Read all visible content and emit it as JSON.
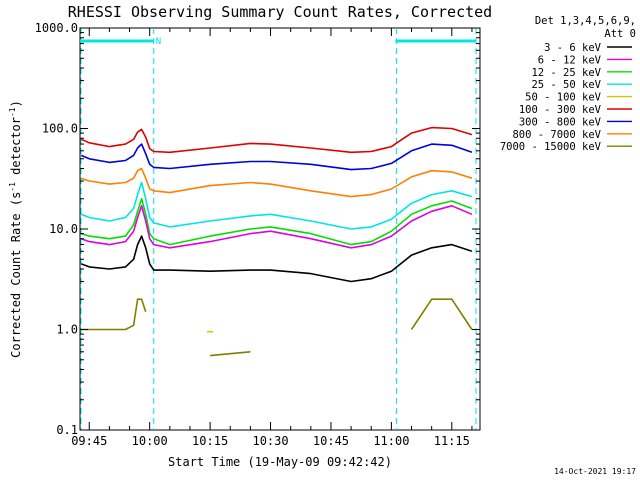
{
  "chart_data": {
    "type": "line",
    "title": "RHESSI Observing Summary Count Rates, Corrected",
    "xlabel": "Start Time (19-May-09 09:42:42)",
    "ylabel": "Corrected Count Rate (s⁻¹ detector⁻¹)",
    "ylabel_parts": {
      "pre": "Corrected Count Rate (s",
      "sup1": "-1",
      "mid": " detector",
      "sup2": "-1",
      "post": ")"
    },
    "y_scale": "log",
    "ylim": [
      0.1,
      1000
    ],
    "y_ticks": [
      0.1,
      1.0,
      10.0,
      100.0,
      1000.0
    ],
    "y_tick_labels": [
      "0.1",
      "1.0",
      "10.0",
      "100.0",
      "1000.0"
    ],
    "x_unit": "UT clock time",
    "xlim": [
      "09:42:42",
      "11:22:00"
    ],
    "x_ticks": [
      "09:45",
      "10:00",
      "10:15",
      "10:30",
      "10:45",
      "11:00",
      "11:15"
    ],
    "grid": false,
    "legend_placement": "right",
    "legend_header": [
      "Det 1,3,4,5,6,9,",
      "Att 0"
    ],
    "timestamp": "14-Oct-2021 19:17",
    "annotations": [
      {
        "label": "N",
        "time": "10:00",
        "color": "#00e5e5"
      }
    ],
    "night_intervals": [
      {
        "start": "09:42:42",
        "end": "10:01"
      },
      {
        "start": "11:01",
        "end": "11:21"
      }
    ],
    "x": [
      "09:43",
      "09:45",
      "09:50",
      "09:54",
      "09:56",
      "09:57",
      "09:58",
      "09:59",
      "10:00",
      "10:01",
      "10:05",
      "10:15",
      "10:25",
      "10:30",
      "10:40",
      "10:50",
      "10:55",
      "11:00",
      "11:05",
      "11:10",
      "11:15",
      "11:20"
    ],
    "series": [
      {
        "name": "3 - 6 keV",
        "color": "#000000",
        "values": [
          4.5,
          4.2,
          4.0,
          4.2,
          5.0,
          7.0,
          8.5,
          6.5,
          4.5,
          3.9,
          3.9,
          3.8,
          3.9,
          3.9,
          3.6,
          3.0,
          3.2,
          3.8,
          5.5,
          6.5,
          7.0,
          6.0
        ]
      },
      {
        "name": "6 - 12 keV",
        "color": "#e000e0",
        "values": [
          8.0,
          7.5,
          7.0,
          7.5,
          9.5,
          13.0,
          17.0,
          12.0,
          8.0,
          7.0,
          6.5,
          7.5,
          9.0,
          9.5,
          8.0,
          6.5,
          7.0,
          8.5,
          12.0,
          15.0,
          17.0,
          14.0
        ]
      },
      {
        "name": "12 - 25 keV",
        "color": "#00e000",
        "values": [
          9.0,
          8.5,
          8.0,
          8.5,
          11.0,
          15.0,
          20.0,
          14.0,
          9.0,
          8.0,
          7.0,
          8.5,
          10.0,
          10.5,
          9.0,
          7.0,
          7.5,
          9.5,
          14.0,
          17.0,
          19.0,
          16.0
        ]
      },
      {
        "name": "25 - 50 keV",
        "color": "#00e5e5",
        "values": [
          14.0,
          13.0,
          12.0,
          13.0,
          16.0,
          22.0,
          29.0,
          20.0,
          13.0,
          11.5,
          10.5,
          12.0,
          13.5,
          14.0,
          12.0,
          10.0,
          10.5,
          12.5,
          18.0,
          22.0,
          24.0,
          21.0
        ]
      },
      {
        "name": "50 - 100 keV",
        "color": "#d2c600",
        "values": [
          null,
          null,
          null,
          null,
          null,
          null,
          null,
          null,
          null,
          null,
          null,
          0.95,
          null,
          null,
          null,
          null,
          null,
          null,
          null,
          null,
          null,
          null
        ]
      },
      {
        "name": "100 - 300 keV",
        "color": "#e00000",
        "values": [
          78,
          72,
          66,
          70,
          78,
          92,
          98,
          82,
          63,
          59,
          58,
          64,
          71,
          70,
          64,
          58,
          59,
          66,
          90,
          102,
          100,
          87
        ]
      },
      {
        "name": "300 - 800 keV",
        "color": "#0000e0",
        "values": [
          54,
          50,
          46,
          48,
          54,
          64,
          70,
          56,
          44,
          41,
          40,
          44,
          47,
          47,
          44,
          39,
          40,
          45,
          60,
          70,
          68,
          58
        ]
      },
      {
        "name": "800 - 7000 keV",
        "color": "#ff8000",
        "values": [
          32,
          30,
          28,
          29,
          32,
          38,
          40,
          32,
          25,
          24,
          23,
          27,
          29,
          28,
          24,
          21,
          22,
          25,
          33,
          38,
          37,
          32
        ]
      },
      {
        "name": "7000 - 15000 keV",
        "color": "#808000",
        "values": [
          1.0,
          1.0,
          1.0,
          1.0,
          1.1,
          2.0,
          2.0,
          1.5,
          null,
          null,
          null,
          0.55,
          0.6,
          null,
          null,
          null,
          null,
          null,
          1.0,
          2.0,
          2.0,
          1.0
        ]
      }
    ]
  }
}
